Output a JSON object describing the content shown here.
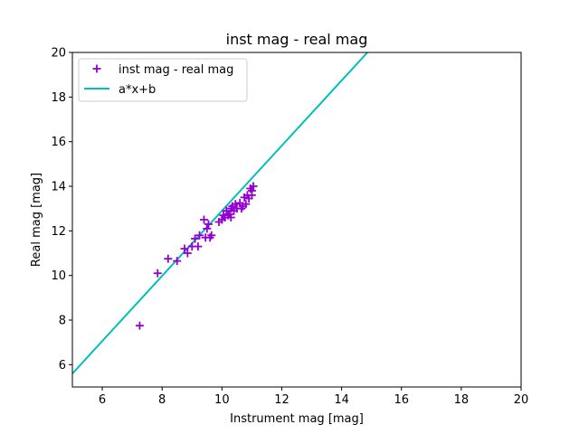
{
  "chart_data": {
    "type": "scatter",
    "title": "inst mag - real mag",
    "xlabel": "Instrument mag [mag]",
    "ylabel": "Real mag [mag]",
    "xlim": [
      5,
      20
    ],
    "ylim": [
      5,
      20
    ],
    "xticks": [
      6,
      8,
      10,
      12,
      14,
      16,
      18,
      20
    ],
    "yticks": [
      6,
      8,
      10,
      12,
      14,
      16,
      18,
      20
    ],
    "grid": false,
    "legend_position": "top-left",
    "series": [
      {
        "name": "inst mag - real mag",
        "kind": "scatter",
        "marker": "plus",
        "color": "#9400d3",
        "points": [
          [
            7.25,
            7.75
          ],
          [
            7.85,
            10.1
          ],
          [
            8.2,
            10.75
          ],
          [
            8.5,
            10.65
          ],
          [
            8.75,
            11.2
          ],
          [
            8.85,
            11.0
          ],
          [
            9.0,
            11.3
          ],
          [
            9.1,
            11.65
          ],
          [
            9.2,
            11.3
          ],
          [
            9.25,
            11.8
          ],
          [
            9.4,
            12.5
          ],
          [
            9.45,
            11.7
          ],
          [
            9.5,
            12.1
          ],
          [
            9.55,
            12.3
          ],
          [
            9.6,
            11.7
          ],
          [
            9.65,
            11.8
          ],
          [
            9.9,
            12.4
          ],
          [
            10.0,
            12.5
          ],
          [
            10.05,
            12.7
          ],
          [
            10.1,
            12.6
          ],
          [
            10.15,
            12.9
          ],
          [
            10.2,
            12.7
          ],
          [
            10.25,
            12.75
          ],
          [
            10.3,
            13.0
          ],
          [
            10.3,
            12.6
          ],
          [
            10.35,
            13.1
          ],
          [
            10.4,
            12.9
          ],
          [
            10.45,
            13.2
          ],
          [
            10.5,
            13.0
          ],
          [
            10.6,
            13.25
          ],
          [
            10.65,
            13.0
          ],
          [
            10.7,
            13.1
          ],
          [
            10.75,
            13.5
          ],
          [
            10.8,
            13.2
          ],
          [
            10.85,
            13.6
          ],
          [
            10.9,
            13.45
          ],
          [
            10.95,
            13.9
          ],
          [
            11.0,
            13.6
          ],
          [
            11.0,
            13.8
          ],
          [
            11.05,
            14.0
          ]
        ]
      },
      {
        "name": "a*x+b",
        "kind": "line",
        "color": "#00bfbf",
        "slope": 1.46,
        "intercept": -1.7
      }
    ]
  }
}
